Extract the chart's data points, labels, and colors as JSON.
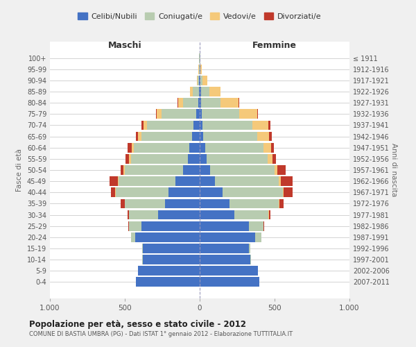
{
  "age_groups": [
    "0-4",
    "5-9",
    "10-14",
    "15-19",
    "20-24",
    "25-29",
    "30-34",
    "35-39",
    "40-44",
    "45-49",
    "50-54",
    "55-59",
    "60-64",
    "65-69",
    "70-74",
    "75-79",
    "80-84",
    "85-89",
    "90-94",
    "95-99",
    "100+"
  ],
  "birth_years": [
    "2007-2011",
    "2002-2006",
    "1997-2001",
    "1992-1996",
    "1987-1991",
    "1982-1986",
    "1977-1981",
    "1972-1976",
    "1967-1971",
    "1962-1966",
    "1957-1961",
    "1952-1956",
    "1947-1951",
    "1942-1946",
    "1937-1941",
    "1932-1936",
    "1927-1931",
    "1922-1926",
    "1917-1921",
    "1912-1916",
    "≤ 1911"
  ],
  "maschi": {
    "celibi": [
      425,
      410,
      380,
      380,
      430,
      390,
      280,
      230,
      210,
      160,
      110,
      80,
      70,
      50,
      40,
      25,
      10,
      5,
      3,
      2,
      2
    ],
    "coniugati": [
      0,
      0,
      2,
      5,
      30,
      80,
      190,
      270,
      350,
      380,
      390,
      380,
      370,
      340,
      310,
      230,
      100,
      40,
      10,
      3,
      1
    ],
    "vedovi": [
      0,
      0,
      0,
      0,
      0,
      0,
      1,
      2,
      3,
      5,
      8,
      10,
      15,
      20,
      25,
      30,
      35,
      20,
      5,
      2,
      0
    ],
    "divorziati": [
      0,
      0,
      0,
      0,
      0,
      5,
      10,
      25,
      30,
      55,
      20,
      25,
      25,
      15,
      12,
      5,
      2,
      0,
      0,
      0,
      0
    ]
  },
  "femmine": {
    "nubili": [
      400,
      390,
      340,
      330,
      370,
      330,
      230,
      200,
      155,
      100,
      70,
      45,
      35,
      25,
      20,
      15,
      10,
      10,
      4,
      3,
      2
    ],
    "coniugate": [
      0,
      0,
      2,
      10,
      40,
      95,
      230,
      330,
      400,
      430,
      430,
      410,
      390,
      360,
      330,
      250,
      130,
      55,
      15,
      3,
      1
    ],
    "vedove": [
      0,
      0,
      0,
      0,
      0,
      0,
      2,
      3,
      5,
      10,
      20,
      30,
      50,
      80,
      110,
      120,
      120,
      75,
      30,
      8,
      2
    ],
    "divorziate": [
      0,
      0,
      0,
      0,
      0,
      5,
      10,
      25,
      60,
      80,
      55,
      25,
      20,
      15,
      10,
      5,
      2,
      0,
      0,
      0,
      0
    ]
  },
  "colors": {
    "celibi": "#4472C4",
    "coniugati": "#B8CCB0",
    "vedovi": "#F5C97A",
    "divorziati": "#C0392B"
  },
  "title": "Popolazione per età, sesso e stato civile - 2012",
  "subtitle": "COMUNE DI BASTIA UMBRA (PG) - Dati ISTAT 1° gennaio 2012 - Elaborazione TUTTITALIA.IT",
  "ylabel": "Fasce di età",
  "ylabel2": "Anni di nascita",
  "xlabel_left": "Maschi",
  "xlabel_right": "Femmine",
  "xlim": 1000,
  "legend_labels": [
    "Celibi/Nubili",
    "Coniugati/e",
    "Vedovi/e",
    "Divorziati/e"
  ],
  "bg_color": "#f0f0f0",
  "plot_bg_color": "#ffffff"
}
